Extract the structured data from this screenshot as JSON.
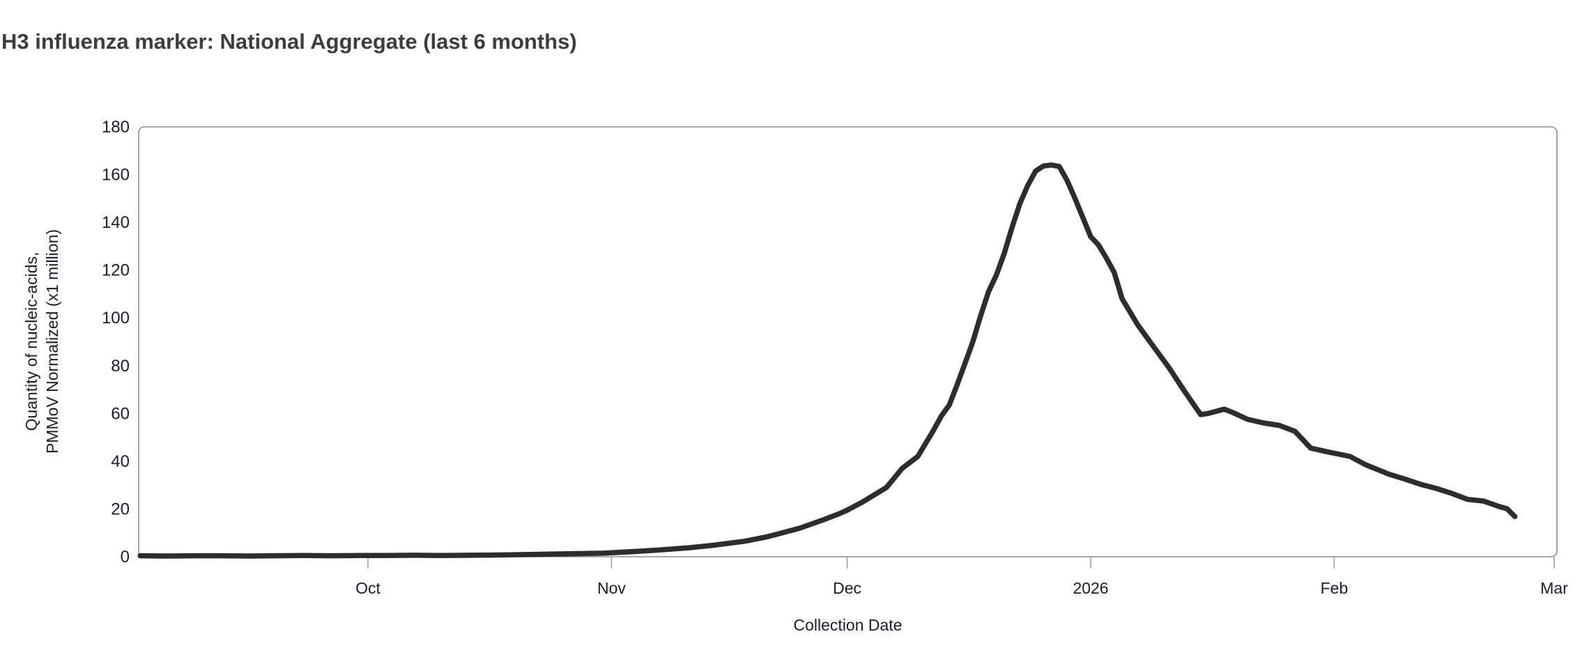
{
  "title": "H3 influenza marker: National Aggregate (last 6 months)",
  "chart_data": {
    "type": "line",
    "title": "H3 influenza marker: National Aggregate (last 6 months)",
    "xlabel": "Collection Date",
    "ylabel_line1": "Quantity of nucleic-acids,",
    "ylabel_line2": "PMMoV Normalized (x1 million)",
    "ylim": [
      0,
      180
    ],
    "y_ticks": [
      0,
      20,
      40,
      60,
      80,
      100,
      120,
      140,
      160,
      180
    ],
    "x_domain": [
      "2025-09-02",
      "2026-03-01"
    ],
    "x_ticks": [
      {
        "date": "2025-10-01",
        "label": "Oct"
      },
      {
        "date": "2025-11-01",
        "label": "Nov"
      },
      {
        "date": "2025-12-01",
        "label": "Dec"
      },
      {
        "date": "2026-01-01",
        "label": "2026"
      },
      {
        "date": "2026-02-01",
        "label": "Feb"
      },
      {
        "date": "2026-03-01",
        "label": "Mar"
      }
    ],
    "grid": "off",
    "legend": "none",
    "line_color": "#2d2d2d",
    "axis_color": "#8b8b8b",
    "tick_color": "#999999",
    "label_color": "#1b1b32",
    "title_color": "#3d3d3d",
    "peak_value": 164,
    "series": [
      {
        "points": [
          [
            "2025-09-02",
            0.4
          ],
          [
            "2025-09-05",
            0.3
          ],
          [
            "2025-09-09",
            0.4
          ],
          [
            "2025-09-12",
            0.4
          ],
          [
            "2025-09-16",
            0.3
          ],
          [
            "2025-09-19",
            0.4
          ],
          [
            "2025-09-23",
            0.5
          ],
          [
            "2025-09-26",
            0.4
          ],
          [
            "2025-09-30",
            0.5
          ],
          [
            "2025-10-03",
            0.5
          ],
          [
            "2025-10-07",
            0.6
          ],
          [
            "2025-10-10",
            0.5
          ],
          [
            "2025-10-14",
            0.6
          ],
          [
            "2025-10-17",
            0.7
          ],
          [
            "2025-10-21",
            0.9
          ],
          [
            "2025-10-24",
            1.1
          ],
          [
            "2025-10-28",
            1.3
          ],
          [
            "2025-10-31",
            1.5
          ],
          [
            "2025-11-04",
            2.2
          ],
          [
            "2025-11-07",
            2.8
          ],
          [
            "2025-11-11",
            3.8
          ],
          [
            "2025-11-14",
            4.8
          ],
          [
            "2025-11-18",
            6.5
          ],
          [
            "2025-11-21",
            8.5
          ],
          [
            "2025-11-25",
            12
          ],
          [
            "2025-11-28",
            15.5
          ],
          [
            "2025-11-30",
            18
          ],
          [
            "2025-12-01",
            19.5
          ],
          [
            "2025-12-03",
            23
          ],
          [
            "2025-12-06",
            29
          ],
          [
            "2025-12-08",
            37
          ],
          [
            "2025-12-10",
            42
          ],
          [
            "2025-12-12",
            53
          ],
          [
            "2025-12-13",
            59
          ],
          [
            "2025-12-14",
            63.5
          ],
          [
            "2025-12-15",
            72
          ],
          [
            "2025-12-16",
            81
          ],
          [
            "2025-12-17",
            90
          ],
          [
            "2025-12-18",
            101
          ],
          [
            "2025-12-19",
            111
          ],
          [
            "2025-12-20",
            118
          ],
          [
            "2025-12-21",
            127
          ],
          [
            "2025-12-22",
            138
          ],
          [
            "2025-12-23",
            148
          ],
          [
            "2025-12-24",
            155.5
          ],
          [
            "2025-12-25",
            161.5
          ],
          [
            "2025-12-26",
            163.6
          ],
          [
            "2025-12-27",
            164
          ],
          [
            "2025-12-28",
            163.4
          ],
          [
            "2025-12-29",
            157.5
          ],
          [
            "2025-12-30",
            150
          ],
          [
            "2025-12-31",
            142
          ],
          [
            "2026-01-01",
            134
          ],
          [
            "2026-01-02",
            130.5
          ],
          [
            "2026-01-03",
            125
          ],
          [
            "2026-01-04",
            119
          ],
          [
            "2026-01-05",
            108
          ],
          [
            "2026-01-07",
            97
          ],
          [
            "2026-01-09",
            88
          ],
          [
            "2026-01-11",
            79
          ],
          [
            "2026-01-13",
            69
          ],
          [
            "2026-01-15",
            59.5
          ],
          [
            "2026-01-16",
            60
          ],
          [
            "2026-01-18",
            61.8
          ],
          [
            "2026-01-19",
            60.5
          ],
          [
            "2026-01-21",
            57.5
          ],
          [
            "2026-01-23",
            56
          ],
          [
            "2026-01-25",
            55
          ],
          [
            "2026-01-27",
            52.5
          ],
          [
            "2026-01-29",
            45.5
          ],
          [
            "2026-01-31",
            44
          ],
          [
            "2026-02-03",
            42
          ],
          [
            "2026-02-05",
            38.5
          ],
          [
            "2026-02-08",
            34.5
          ],
          [
            "2026-02-10",
            32.5
          ],
          [
            "2026-02-12",
            30.3
          ],
          [
            "2026-02-14",
            28.6
          ],
          [
            "2026-02-16",
            26.5
          ],
          [
            "2026-02-18",
            24
          ],
          [
            "2026-02-20",
            23.3
          ],
          [
            "2026-02-22",
            21
          ],
          [
            "2026-02-23",
            20.1
          ],
          [
            "2026-02-24",
            16.8
          ]
        ]
      }
    ]
  }
}
